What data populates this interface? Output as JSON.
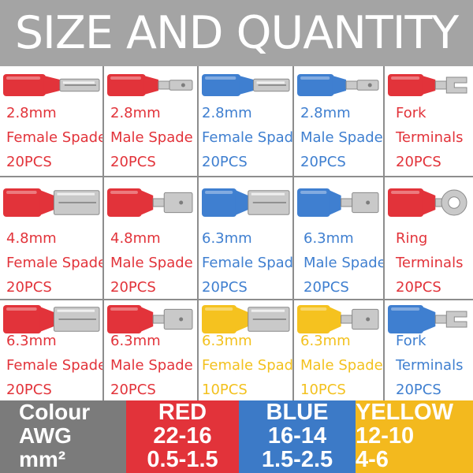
{
  "header": {
    "title": "SIZE AND QUANTITY"
  },
  "products": [
    {
      "size": "2.8mm",
      "type": "Female Spade",
      "qty": "20PCS",
      "color": "red",
      "shape": "female-small"
    },
    {
      "size": "2.8mm",
      "type": "Male Spade",
      "qty": "20PCS",
      "color": "red",
      "shape": "male-small"
    },
    {
      "size": "2.8mm",
      "type": "Female Spade",
      "qty": "20PCS",
      "color": "blue",
      "shape": "female-small"
    },
    {
      "size": "2.8mm",
      "type": "Male Spade",
      "qty": "20PCS",
      "color": "blue",
      "shape": "male-small"
    },
    {
      "size": "Fork",
      "type": "Terminals",
      "qty": "20PCS",
      "color": "red",
      "shape": "fork"
    },
    {
      "size": "4.8mm",
      "type": "Female Spade",
      "qty": "20PCS",
      "color": "red",
      "shape": "female-large"
    },
    {
      "size": "4.8mm",
      "type": "Male Spade",
      "qty": "20PCS",
      "color": "red",
      "shape": "male-large"
    },
    {
      "size": "6.3mm",
      "type": "Female Spade",
      "qty": "20PCS",
      "color": "blue",
      "shape": "female-large"
    },
    {
      "size": "6.3mm",
      "type": "Male Spade",
      "qty": "20PCS",
      "color": "blue",
      "shape": "male-large"
    },
    {
      "size": "Ring",
      "type": "Terminals",
      "qty": "20PCS",
      "color": "red",
      "shape": "ring"
    },
    {
      "size": "6.3mm",
      "type": "Female Spade",
      "qty": "20PCS",
      "color": "red",
      "shape": "female-large"
    },
    {
      "size": "6.3mm",
      "type": "Male Spade",
      "qty": "20PCS",
      "color": "red",
      "shape": "male-large"
    },
    {
      "size": "6.3mm",
      "type": "Female Spade",
      "qty": "10PCS",
      "color": "yellow",
      "shape": "female-large"
    },
    {
      "size": "6.3mm",
      "type": "Male Spade",
      "qty": "10PCS",
      "color": "yellow",
      "shape": "male-large"
    },
    {
      "size": "Fork",
      "type": "Terminals",
      "qty": "20PCS",
      "color": "blue",
      "shape": "fork"
    }
  ],
  "legend": {
    "row_labels": [
      "Colour",
      "AWG",
      "mm²"
    ],
    "columns": [
      {
        "name": "RED",
        "awg": "22-16",
        "mm2": "0.5-1.5",
        "color": "red"
      },
      {
        "name": "BLUE",
        "awg": "16-14",
        "mm2": "1.5-2.5",
        "color": "blue"
      },
      {
        "name": "YELLOW",
        "awg": "12-10",
        "mm2": "4-6",
        "color": "yellow"
      }
    ]
  },
  "colors": {
    "red_insulation": "#e2333a",
    "blue_insulation": "#3f7fd0",
    "yellow_insulation": "#f5c21f",
    "metal": "#c9c9c9"
  }
}
